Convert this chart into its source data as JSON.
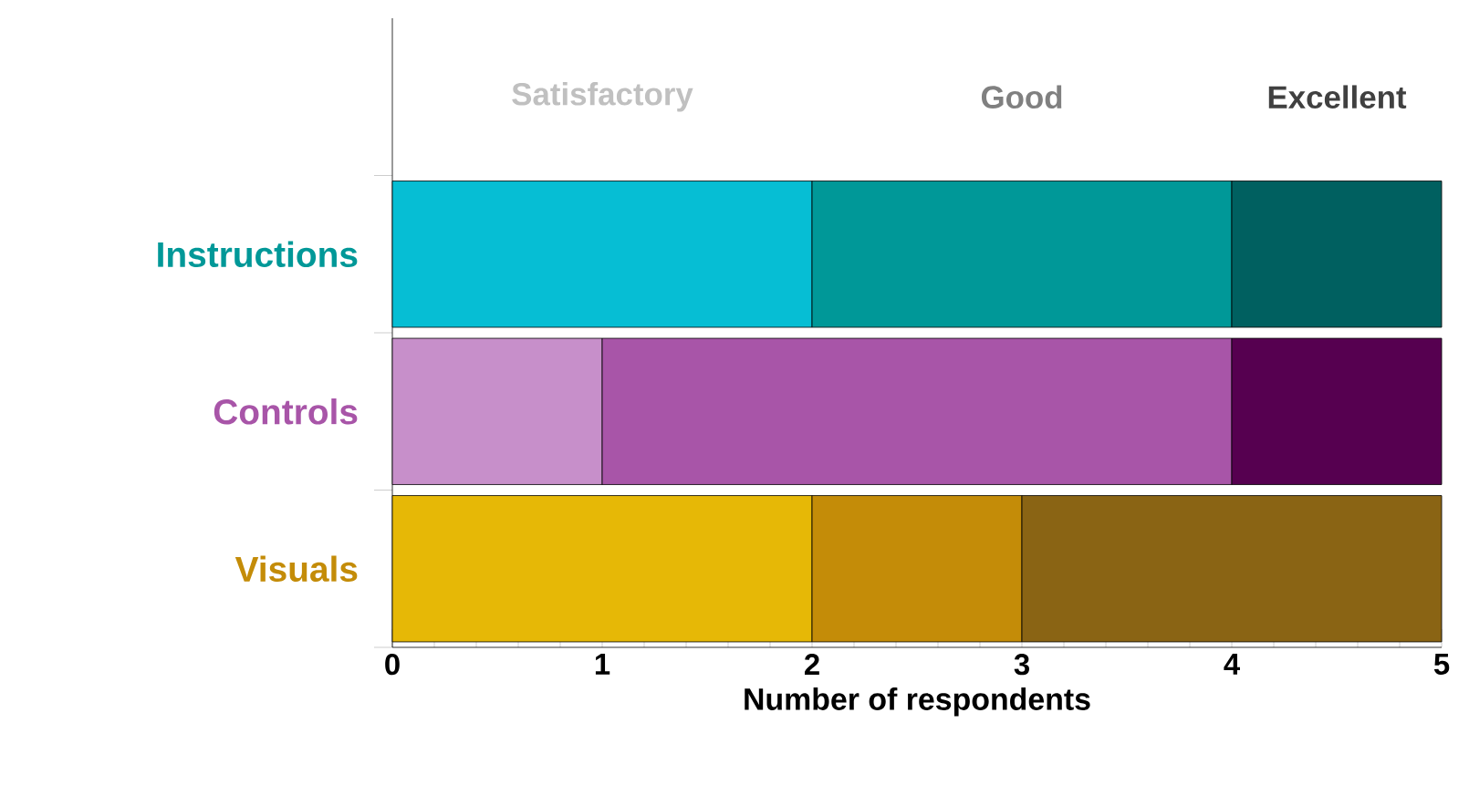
{
  "chart_data": {
    "type": "bar",
    "orientation": "horizontal",
    "stacked": true,
    "categories": [
      "Instructions",
      "Controls",
      "Visuals"
    ],
    "series": [
      {
        "name": "Satisfactory",
        "values": [
          2,
          1,
          2
        ],
        "colors": [
          "#06bed4",
          "#c78fca",
          "#e6b806"
        ]
      },
      {
        "name": "Good",
        "values": [
          2,
          3,
          1
        ],
        "colors": [
          "#009898",
          "#a855a8",
          "#c48c08"
        ]
      },
      {
        "name": "Excellent",
        "values": [
          1,
          1,
          2
        ],
        "colors": [
          "#006060",
          "#560050",
          "#8a6414"
        ]
      }
    ],
    "xlabel": "Number of respondents",
    "xlim": [
      0,
      5
    ],
    "xticks": [
      0,
      1,
      2,
      3,
      4,
      5
    ],
    "legend": "top",
    "grid": false
  }
}
